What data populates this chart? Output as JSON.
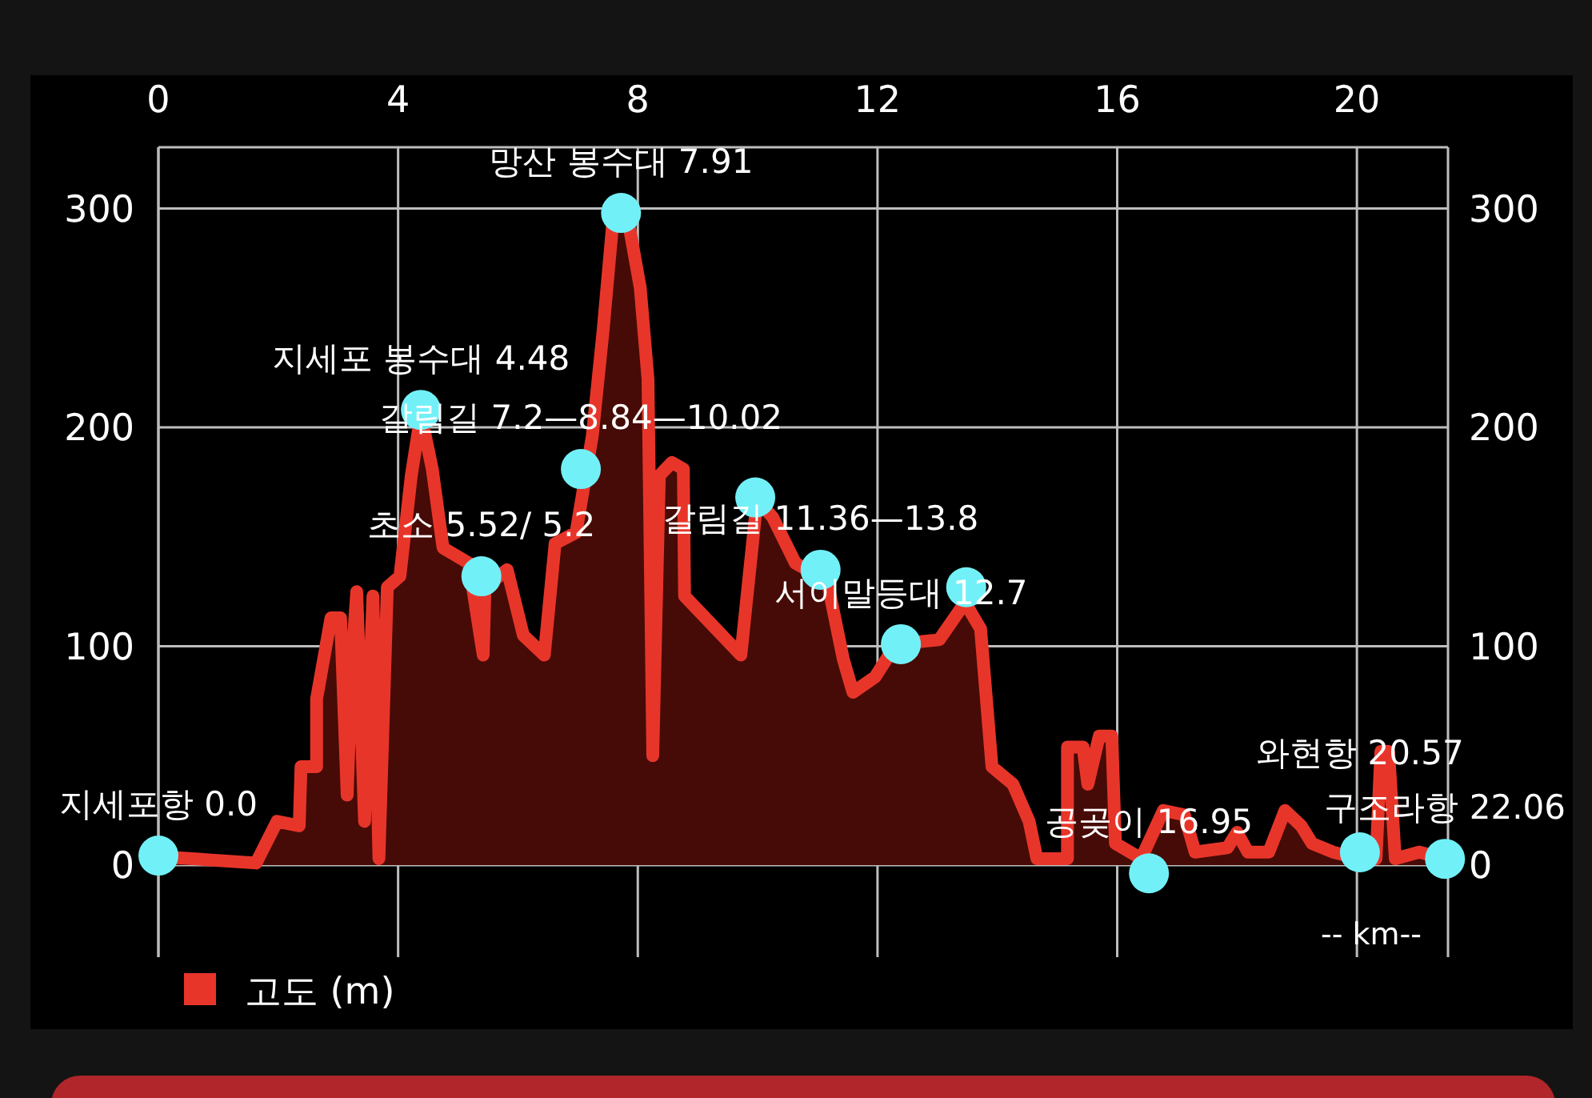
{
  "chart_data": {
    "type": "area",
    "xlabel": "-- km--",
    "xlim": [
      0,
      21.52
    ],
    "xticks": [
      0,
      4,
      8,
      12,
      16,
      20
    ],
    "ylim": [
      -42,
      328
    ],
    "yticks": [
      0,
      100,
      200,
      300
    ],
    "y2lim": [
      -42,
      328
    ],
    "y2ticks": [
      0,
      100,
      200,
      300
    ],
    "grid": true,
    "legend": "bottom left",
    "line_style": "solid",
    "series": [
      {
        "name": "고도 (m)",
        "color": "#e8352a",
        "x": [
          0,
          1.63,
          1.98,
          2.35,
          2.38,
          2.64,
          2.64,
          2.88,
          3.04,
          3.15,
          3.23,
          3.31,
          3.44,
          3.58,
          3.68,
          3.82,
          4.03,
          4.22,
          4.38,
          4.57,
          4.75,
          5.18,
          5.42,
          5.45,
          5.82,
          6.09,
          6.44,
          6.62,
          6.97,
          7.24,
          7.42,
          7.58,
          7.72,
          7.85,
          8.04,
          8.17,
          8.25,
          8.36,
          8.57,
          8.76,
          8.78,
          9.72,
          9.99,
          10.25,
          10.63,
          11.16,
          11.43,
          11.59,
          11.96,
          12.31,
          13.03,
          13.46,
          13.72,
          13.91,
          14.26,
          14.53,
          14.66,
          15.17,
          15.17,
          15.43,
          15.51,
          15.7,
          15.91,
          15.97,
          16.4,
          16.77,
          17.12,
          17.3,
          17.84,
          18.0,
          18.18,
          18.53,
          18.8,
          19.07,
          19.25,
          19.6,
          20.05,
          20.32,
          20.4,
          20.53,
          20.64,
          21.04,
          21.47
        ],
        "values": [
          4,
          1,
          20,
          18,
          45,
          45,
          76,
          113,
          113,
          32,
          94,
          125,
          20,
          123,
          3,
          127,
          132,
          178,
          206,
          181,
          145,
          138,
          96,
          127,
          135,
          105,
          96,
          147,
          152,
          196,
          244,
          293,
          298,
          293,
          264,
          222,
          50,
          178,
          184,
          181,
          123,
          96,
          167,
          159,
          138,
          130,
          94,
          79,
          86,
          101,
          103,
          120,
          108,
          45,
          37,
          20,
          3,
          3,
          54,
          54,
          37,
          59,
          59,
          10,
          3,
          25,
          23,
          6,
          8,
          15,
          6,
          6,
          25,
          18,
          10,
          6,
          3,
          3,
          52,
          52,
          3,
          6,
          3
        ]
      },
      {
        "type": "scatter",
        "color": "#72f0f7",
        "marker": "circle",
        "x": [
          0,
          4.38,
          5.39,
          7.05,
          7.72,
          9.96,
          11.05,
          12.39,
          13.48,
          16.53,
          20.05,
          21.47
        ],
        "values": [
          4.4,
          208,
          132,
          181,
          298,
          168,
          135,
          101,
          127,
          -3.7,
          5.9,
          2.9
        ]
      }
    ],
    "annotations": [
      {
        "text": "지세포항 0.0",
        "x": 0,
        "y": 4.4
      },
      {
        "text": "지세포 봉수대 4.48",
        "x": 4.38,
        "y": 208
      },
      {
        "text": "초소 5.52/ 5.2",
        "x": 5.39,
        "y": 132
      },
      {
        "text": "갈림길 7.2—8.84—10.02",
        "x": 7.05,
        "y": 181
      },
      {
        "text": "망산 봉수대 7.91",
        "x": 7.72,
        "y": 298
      },
      {
        "text": "갈림길 11.36—13.8",
        "x": 11.05,
        "y": 135
      },
      {
        "text": "서이말등대 12.7",
        "x": 12.39,
        "y": 101
      },
      {
        "text": "공곶이 16.95",
        "x": 16.53,
        "y": -3.7
      },
      {
        "text": "구조라항 22.06",
        "x": 21.47,
        "y": 2.9
      },
      {
        "text": "와현항 20.57",
        "x": 20.05,
        "y": 5.9
      }
    ]
  }
}
